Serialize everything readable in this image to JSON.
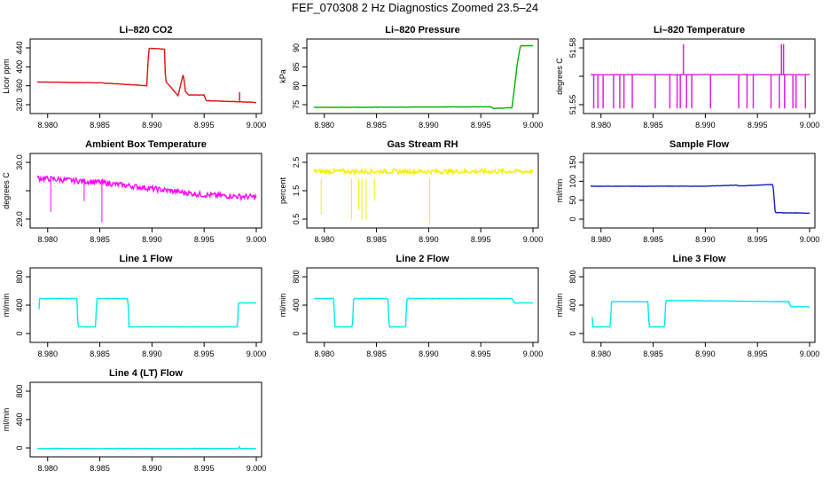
{
  "page_title": "FEF_070308  2 Hz Diagnostics Zoomed 23.5–24",
  "chart_data": [
    {
      "type": "line",
      "title": "Li–820 CO2",
      "ylabel": "Licor ppm",
      "xlim": [
        8.979,
        9.0
      ],
      "ylim": [
        318,
        462
      ],
      "color": "#e01010",
      "xticks": [
        "8.980",
        "8.985",
        "8.990",
        "8.995",
        "9.000"
      ],
      "yticks": [
        "320",
        "360",
        "400",
        "440"
      ],
      "x": [
        8.979,
        8.985,
        8.9895,
        8.9897,
        8.9912,
        8.9913,
        8.9925,
        8.993,
        8.9932,
        8.9935,
        8.995,
        8.9952,
        8.998,
        8.999,
        9.0
      ],
      "y": [
        378,
        376,
        370,
        450,
        448,
        380,
        348,
        395,
        358,
        350,
        350,
        338,
        336,
        335,
        334
      ]
    },
    {
      "type": "line",
      "title": "Li–820 Pressure",
      "ylabel": "kPa",
      "xlim": [
        8.979,
        9.0
      ],
      "ylim": [
        71.5,
        92.5
      ],
      "color": "#00b000",
      "xticks": [
        "8.980",
        "8.985",
        "8.990",
        "8.995",
        "9.000"
      ],
      "yticks": [
        "75",
        "80",
        "85",
        "90"
      ],
      "x": [
        8.979,
        8.996,
        8.9962,
        8.998,
        8.9985,
        8.9988,
        9.0
      ],
      "y": [
        72.3,
        72.5,
        72.0,
        72.2,
        86,
        91.5,
        91.5
      ]
    },
    {
      "type": "line",
      "title": "Li–820 Temperature",
      "ylabel": "degrees C",
      "xlim": [
        8.979,
        9.0
      ],
      "ylim": [
        51.548,
        51.59
      ],
      "color": "#e020e0",
      "xticks": [
        "8.980",
        "8.985",
        "8.990",
        "8.995",
        "9.000"
      ],
      "yticks": [
        "51.55",
        "",
        "51.58"
      ],
      "x": [
        8.979,
        9.0
      ],
      "y": [
        51.57,
        51.57
      ]
    },
    {
      "type": "line",
      "title": "Ambient Box Temperature",
      "ylabel": "degrees C",
      "xlim": [
        8.979,
        9.0
      ],
      "ylim": [
        28.75,
        30.35
      ],
      "color": "#ff00ff",
      "xticks": [
        "8.980",
        "8.985",
        "8.990",
        "8.995",
        "9.000"
      ],
      "yticks": [
        "29.0",
        "",
        "30.0"
      ],
      "x": [
        8.979,
        8.985,
        8.99,
        8.995,
        9.0
      ],
      "y": [
        29.85,
        29.75,
        29.6,
        29.45,
        29.4
      ]
    },
    {
      "type": "line",
      "title": "Gas Stream RH",
      "ylabel": "percent",
      "xlim": [
        8.979,
        9.0
      ],
      "ylim": [
        0.4,
        3.2
      ],
      "color": "#f0f000",
      "xticks": [
        "8.980",
        "8.985",
        "8.990",
        "8.995",
        "9.000"
      ],
      "yticks": [
        "0.5",
        "1.5",
        "2.5"
      ],
      "x": [
        8.979,
        9.0
      ],
      "y": [
        2.6,
        2.6
      ]
    },
    {
      "type": "line",
      "title": "Sample Flow",
      "ylabel": "ml/min",
      "xlim": [
        8.979,
        9.0
      ],
      "ylim": [
        -40,
        200
      ],
      "color": "#1020c0",
      "xticks": [
        "8.980",
        "8.985",
        "8.990",
        "8.995",
        "9.000"
      ],
      "yticks": [
        "0",
        "50",
        "100",
        "150"
      ],
      "x": [
        8.979,
        8.99,
        8.993,
        8.9932,
        8.9965,
        8.9967,
        9.0
      ],
      "y": [
        96,
        96,
        100,
        97,
        102,
        2,
        0
      ]
    },
    {
      "type": "line",
      "title": "Line 1 Flow",
      "ylabel": "ml/min",
      "xlim": [
        8.979,
        9.0
      ],
      "ylim": [
        -70,
        1000
      ],
      "color": "#00e8f0",
      "xticks": [
        "8.980",
        "8.985",
        "8.990",
        "8.995",
        "9.000"
      ],
      "yticks": [
        "0",
        "400",
        "800"
      ],
      "x": [
        8.9791,
        8.9792,
        8.9828,
        8.9829,
        8.9846,
        8.9847,
        8.9877,
        8.9878,
        8.9982,
        8.9983,
        9.0
      ],
      "y": [
        120,
        570,
        570,
        120,
        120,
        570,
        570,
        120,
        120,
        500,
        500
      ]
    },
    {
      "type": "line",
      "title": "Line 2 Flow",
      "ylabel": "ml/min",
      "xlim": [
        8.979,
        9.0
      ],
      "ylim": [
        -70,
        1000
      ],
      "color": "#00e8f0",
      "xticks": [
        "8.980",
        "8.985",
        "8.990",
        "8.995",
        "9.000"
      ],
      "yticks": [
        "0",
        "400",
        "800"
      ],
      "x": [
        8.979,
        8.9809,
        8.981,
        8.9827,
        8.9828,
        8.9861,
        8.9862,
        8.9878,
        8.9879,
        8.998,
        8.9982,
        9.0
      ],
      "y": [
        570,
        570,
        120,
        120,
        570,
        570,
        120,
        120,
        570,
        570,
        500,
        500
      ]
    },
    {
      "type": "line",
      "title": "Line 3 Flow",
      "ylabel": "ml/min",
      "xlim": [
        8.979,
        9.0
      ],
      "ylim": [
        -70,
        1000
      ],
      "color": "#00e8f0",
      "xticks": [
        "8.980",
        "8.985",
        "8.990",
        "8.995",
        "9.000"
      ],
      "yticks": [
        "0",
        "400",
        "800"
      ],
      "x": [
        8.9791,
        8.9792,
        8.9809,
        8.981,
        8.9845,
        8.9846,
        8.9861,
        8.9862,
        8.998,
        8.9982,
        9.0
      ],
      "y": [
        520,
        120,
        120,
        520,
        520,
        120,
        120,
        540,
        520,
        440,
        440
      ]
    },
    {
      "type": "line",
      "title": "Line 4 (LT) Flow",
      "ylabel": "ml/min",
      "xlim": [
        8.979,
        9.0
      ],
      "ylim": [
        -70,
        1000
      ],
      "color": "#00e8f0",
      "xticks": [
        "8.980",
        "8.985",
        "8.990",
        "8.995",
        "9.000"
      ],
      "yticks": [
        "0",
        "400",
        "800"
      ],
      "x": [
        8.979,
        8.9983,
        8.99835,
        8.9984,
        9.0
      ],
      "y": [
        5,
        5,
        100,
        5,
        5
      ]
    }
  ]
}
